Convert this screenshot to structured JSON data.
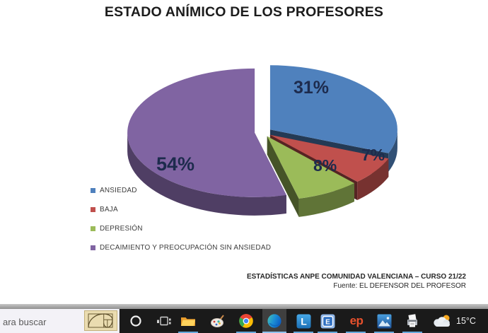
{
  "chart_data": {
    "type": "pie",
    "style": "3d-exploded-pie",
    "title": "ESTADO ANÍMICO DE LOS PROFESORES",
    "categories": [
      "ANSIEDAD",
      "BAJA",
      "DEPRESIÓN",
      "DECAIMIENTO Y PREOCUPACIÓN SIN ANSIEDAD"
    ],
    "values": [
      31,
      7,
      8,
      54
    ],
    "labels": [
      "31%",
      "7%",
      "8%",
      "54%"
    ],
    "colors": [
      "#4F81BD",
      "#C0504D",
      "#9BBB59",
      "#8064A2"
    ],
    "legend_position": "bottom-left",
    "unit": "%"
  },
  "source": {
    "line1": "ESTADÍSTICAS ANPE COMUNIDAD VALENCIANA – CURSO 21/22",
    "line2": "Fuente: EL DEFENSOR DEL PROFESOR"
  },
  "taskbar": {
    "search_text": "ara buscar",
    "l_label": "L",
    "e_label": "E",
    "ep_label": "ep",
    "weather_temp": "15°C",
    "icons": [
      "golden-ratio",
      "cortana",
      "task-view",
      "file-explorer",
      "paint-3d",
      "chrome",
      "edge",
      "l-app",
      "e-app",
      "europa-press",
      "photos",
      "print-scan",
      "weather"
    ]
  }
}
